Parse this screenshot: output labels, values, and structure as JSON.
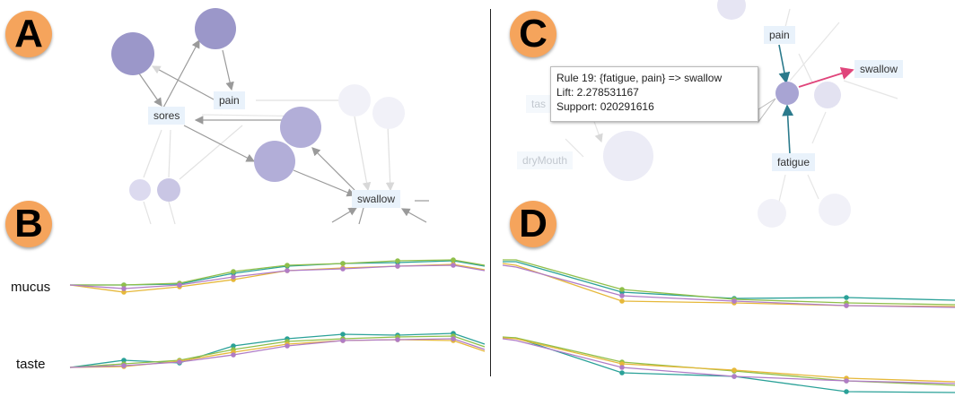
{
  "panels": {
    "a": {
      "letter": "A"
    },
    "b": {
      "letter": "B"
    },
    "c": {
      "letter": "C"
    },
    "d": {
      "letter": "D"
    }
  },
  "graph_a": {
    "labels": {
      "pain": "pain",
      "sores": "sores",
      "swallow": "swallow"
    }
  },
  "graph_c": {
    "labels": {
      "pain": "pain",
      "swallow": "swallow",
      "fatigue": "fatigue",
      "dryMouth": "dryMouth",
      "tas": "tas"
    },
    "highlight_edge_color": "#e0457b",
    "rule_edge_color": "#2b7a8c"
  },
  "tooltip": {
    "rule": "Rule 19: {fatigue, pain} => swallow",
    "lift": "Lift: 2.278531167",
    "support": "Support: 020291616"
  },
  "rows": {
    "mucus": "mucus",
    "taste": "taste"
  },
  "colors": {
    "node_dark": "#9b97c9",
    "node_mid": "#b7b4da",
    "node_light": "#ececf6",
    "series": [
      "#2aa198",
      "#8fbf4a",
      "#e6b83a",
      "#b07cc6"
    ]
  }
}
